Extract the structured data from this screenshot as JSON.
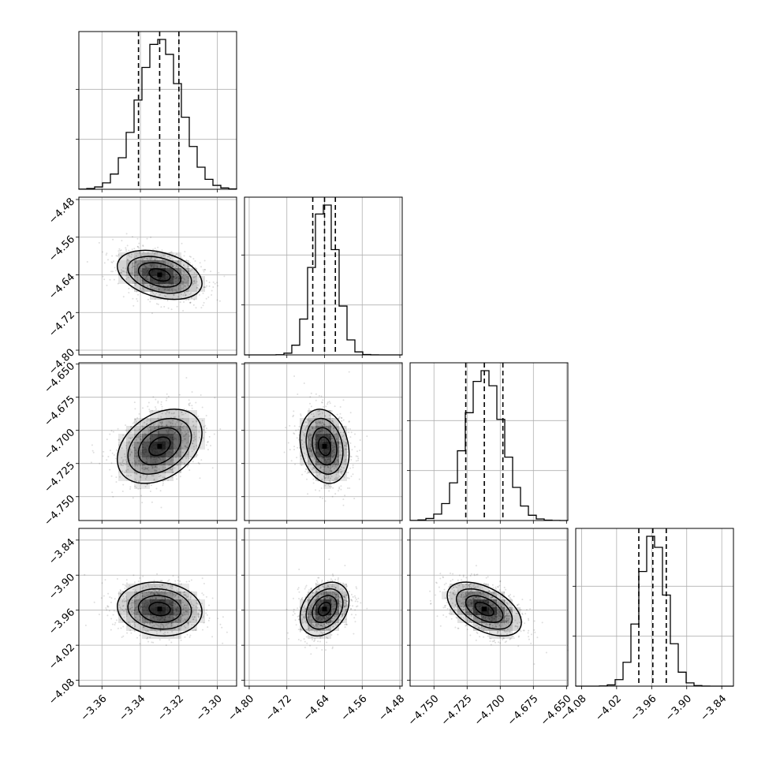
{
  "chart_data": {
    "type": "corner",
    "n_params": 4,
    "params": [
      {
        "mean": -3.33,
        "sd": 0.011,
        "lo": -3.372,
        "hi": -3.29,
        "ticks": [
          -3.36,
          -3.34,
          -3.32,
          -3.3
        ],
        "tick_labels": [
          "−3.36",
          "−3.34",
          "−3.32",
          "−3.30"
        ],
        "quantiles": [
          -3.341,
          -3.33,
          -3.32
        ]
      },
      {
        "mean": -4.64,
        "sd": 0.026,
        "lo": -4.81,
        "hi": -4.475,
        "ticks": [
          -4.8,
          -4.72,
          -4.64,
          -4.56,
          -4.48
        ],
        "tick_labels": [
          "−4.80",
          "−4.72",
          "−4.64",
          "−4.56",
          "−4.48"
        ],
        "quantiles": [
          -4.665,
          -4.64,
          -4.617
        ]
      },
      {
        "mean": -4.712,
        "sd": 0.014,
        "lo": -4.768,
        "hi": -4.649,
        "ticks": [
          -4.75,
          -4.725,
          -4.7,
          -4.675,
          -4.65
        ],
        "tick_labels": [
          "−4.750",
          "−4.725",
          "−4.700",
          "−4.675",
          "−4.650"
        ],
        "quantiles": [
          -4.726,
          -4.712,
          -4.698
        ]
      },
      {
        "mean": -3.958,
        "sd": 0.023,
        "lo": -4.09,
        "hi": -3.82,
        "ticks": [
          -4.08,
          -4.02,
          -3.96,
          -3.9,
          -3.84
        ],
        "tick_labels": [
          "−4.08",
          "−4.02",
          "−3.96",
          "−3.90",
          "−3.84"
        ],
        "quantiles": [
          -3.982,
          -3.958,
          -3.935
        ]
      }
    ],
    "correlations": {
      "1-0": -0.35,
      "2-0": 0.35,
      "2-1": -0.2,
      "3-0": -0.1,
      "3-1": 0.3,
      "3-2": -0.5
    },
    "contour_levels_sigma": [
      0.5,
      1.0,
      1.5,
      2.0
    ],
    "hist_bins": 20,
    "grid": true,
    "colors": {
      "ink": "#000000",
      "grid": "#b0b0b0",
      "scatter": "#000000"
    }
  }
}
